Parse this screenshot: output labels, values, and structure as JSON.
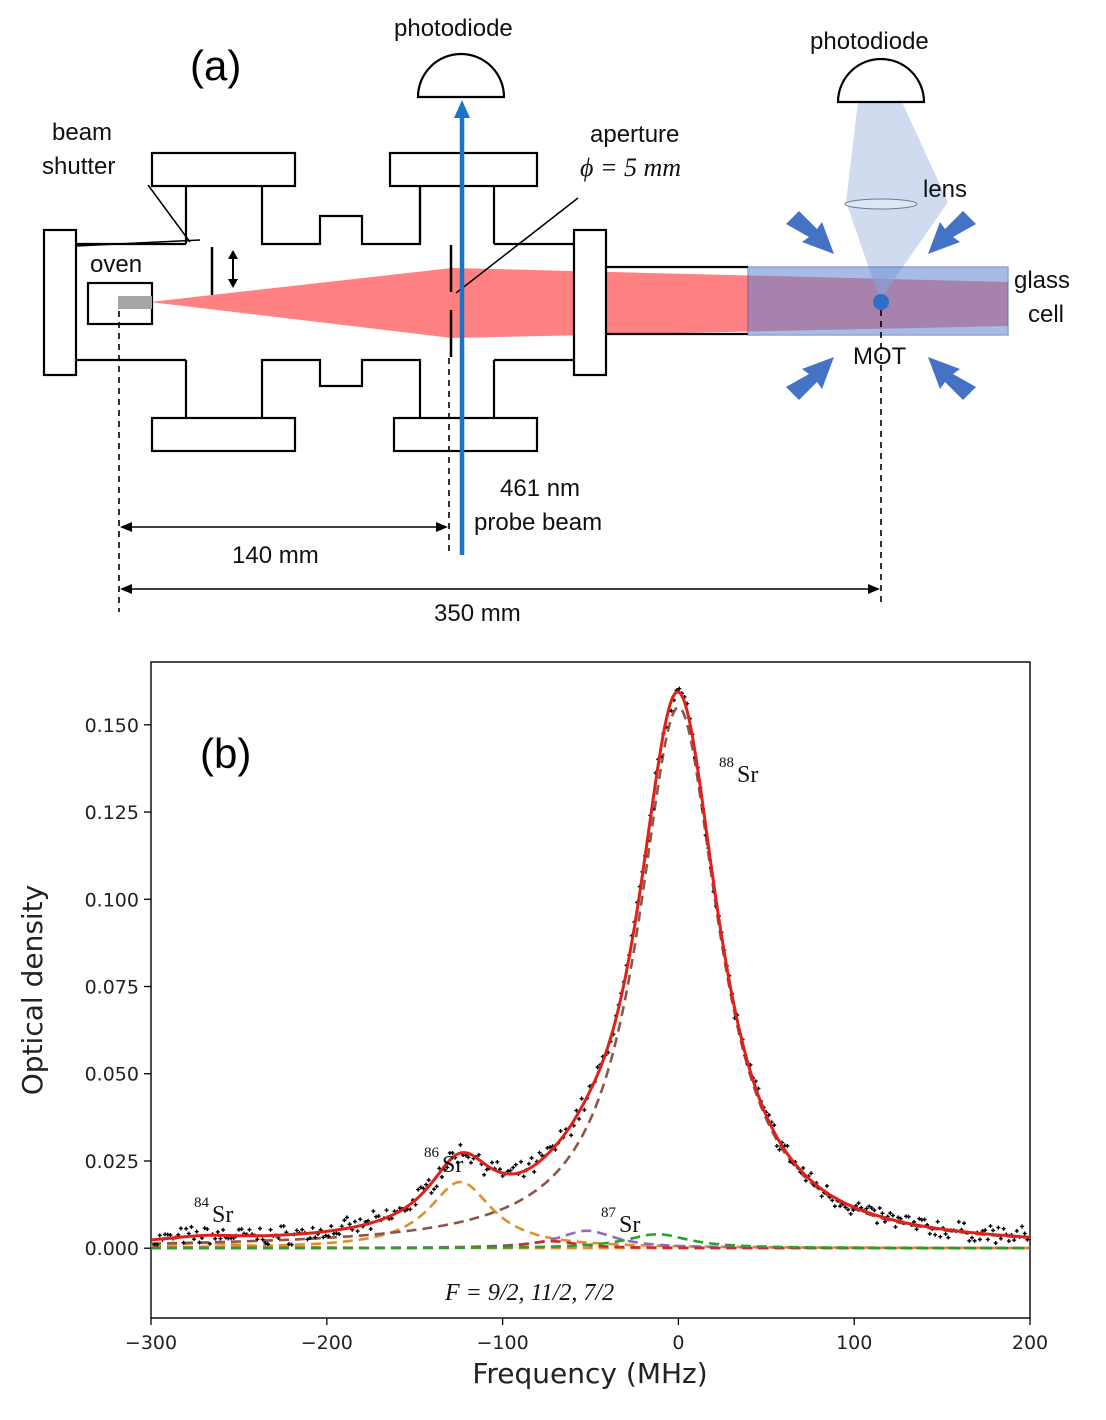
{
  "panel_a": {
    "label": "(a)",
    "photodiode_left": "photodiode",
    "photodiode_right": "photodiode",
    "beam_shutter_line1": "beam",
    "beam_shutter_line2": "shutter",
    "aperture_line1": "aperture",
    "aperture_line2": "ϕ = 5 mm",
    "oven": "oven",
    "lens": "lens",
    "glass_cell_line1": "glass",
    "glass_cell_line2": "cell",
    "mot": "MOT",
    "probe_line1": "461 nm",
    "probe_line2": "probe beam",
    "distance_1": "140 mm",
    "distance_2": "350 mm",
    "colors": {
      "atomic_beam": "#ff6b6b",
      "probe_beam": "#1a73c8",
      "mot_beams": "#4472c4",
      "glass_cell": "#7a9cd8"
    }
  },
  "panel_b": {
    "label": "(b)",
    "iso_84": "84",
    "iso_86": "86",
    "iso_87": "87",
    "iso_88": "88",
    "iso_sym": "Sr",
    "hyperfine": "F = 9/2, 11/2, 7/2"
  },
  "chart_data": {
    "type": "line",
    "xlabel": "Frequency (MHz)",
    "ylabel": "Optical density",
    "xlim": [
      -300,
      200
    ],
    "ylim": [
      -0.02,
      0.168
    ],
    "x_ticks": [
      -300,
      -200,
      -100,
      0,
      100,
      200
    ],
    "x_tick_labels": [
      "−300",
      "−200",
      "−100",
      "0",
      "100",
      "200"
    ],
    "y_ticks": [
      0.0,
      0.025,
      0.05,
      0.075,
      0.1,
      0.125,
      0.15
    ],
    "y_tick_labels": [
      "0.000",
      "0.025",
      "0.050",
      "0.075",
      "0.100",
      "0.125",
      "0.150"
    ],
    "grid": false,
    "components": [
      {
        "center": -270,
        "amplitude": 0.0015,
        "width": 28,
        "style": "dashed",
        "color": "#e0902a"
      },
      {
        "center": -124,
        "amplitude": 0.019,
        "width": 22,
        "style": "dashed",
        "color": "#e0902a"
      },
      {
        "center": -52,
        "amplitude": 0.005,
        "width": 20,
        "style": "dashed",
        "color": "#9467bd"
      },
      {
        "center": -72,
        "amplitude": 0.002,
        "width": 18,
        "style": "dashed",
        "color": "#d62728"
      },
      {
        "center": -12,
        "amplitude": 0.004,
        "width": 22,
        "style": "dashed",
        "color": "#2ca02c"
      },
      {
        "center": 0,
        "amplitude": 0.155,
        "width": 28,
        "style": "dashed",
        "color": "#8c564b"
      }
    ],
    "fit_color": "#e0201a",
    "data_color": "#000000",
    "peaks": [
      {
        "isotope": "84Sr",
        "frequency": -270,
        "optical_density": 0.0015
      },
      {
        "isotope": "86Sr",
        "frequency": -124,
        "optical_density": 0.022
      },
      {
        "isotope": "87Sr",
        "frequency": -50,
        "optical_density": 0.006
      },
      {
        "isotope": "88Sr",
        "frequency": 0,
        "optical_density": 0.158
      }
    ]
  }
}
